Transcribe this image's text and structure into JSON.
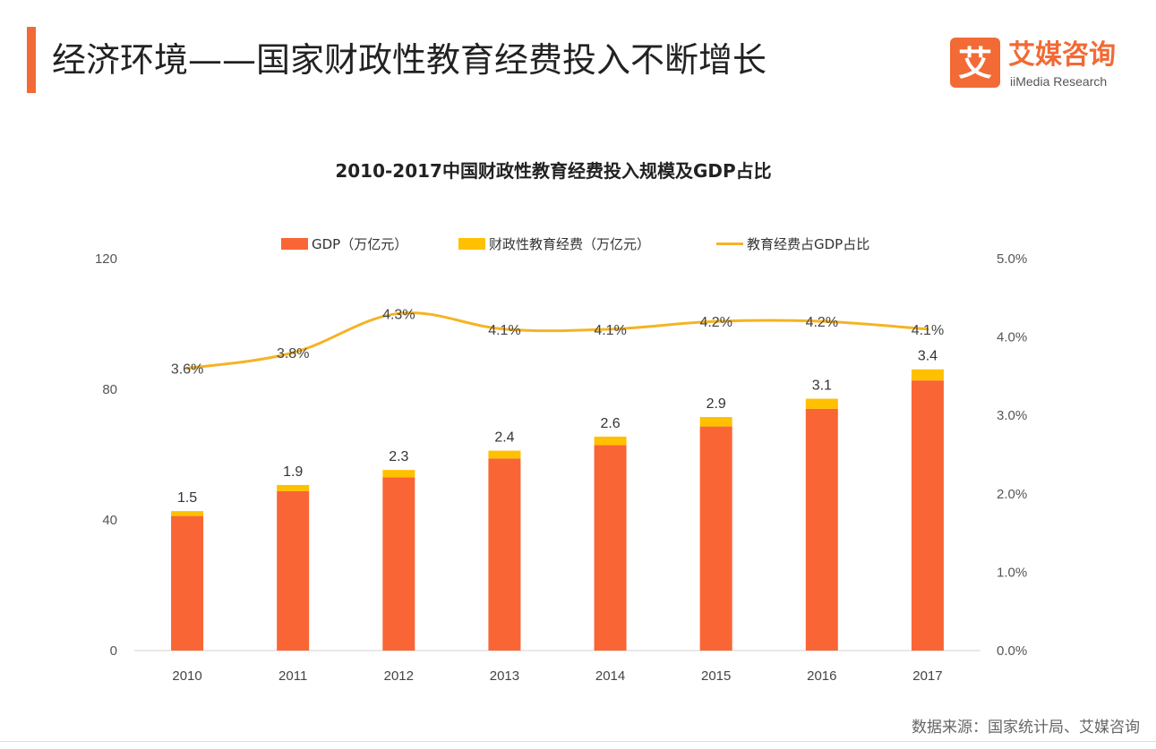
{
  "header": {
    "title": "经济环境——国家财政性教育经费投入不断增长",
    "accent_color": "#F26A35"
  },
  "brand": {
    "logo_char": "艾",
    "name": "艾媒咨询",
    "sub": "iiMedia Research",
    "color": "#F26A35"
  },
  "chart_data": {
    "type": "bar",
    "title": "2010-2017中国财政性教育经费投入规模及GDP占比",
    "categories": [
      "2010",
      "2011",
      "2012",
      "2013",
      "2014",
      "2015",
      "2016",
      "2017"
    ],
    "series": [
      {
        "name": "GDP（万亿元）",
        "kind": "stacked-bar",
        "axis": "left",
        "color": "#F96535",
        "values": [
          41.2,
          48.8,
          53.0,
          58.8,
          62.9,
          68.6,
          74.0,
          82.7
        ]
      },
      {
        "name": "财政性教育经费（万亿元）",
        "kind": "stacked-bar",
        "axis": "left",
        "color": "#FFC000",
        "values": [
          1.5,
          1.9,
          2.3,
          2.4,
          2.6,
          2.9,
          3.1,
          3.4
        ],
        "labels": [
          "1.5",
          "1.9",
          "2.3",
          "2.4",
          "2.6",
          "2.9",
          "3.1",
          "3.4"
        ]
      },
      {
        "name": "教育经费占GDP占比",
        "kind": "line",
        "axis": "right",
        "color": "#F5B324",
        "values": [
          3.6,
          3.8,
          4.3,
          4.1,
          4.1,
          4.2,
          4.2,
          4.1
        ],
        "labels": [
          "3.6%",
          "3.8%",
          "4.3%",
          "4.1%",
          "4.1%",
          "4.2%",
          "4.2%",
          "4.1%"
        ]
      }
    ],
    "y_left": {
      "min": 0,
      "max": 120,
      "ticks": [
        "0",
        "40",
        "80",
        "120"
      ],
      "tick_values": [
        0,
        40,
        80,
        120
      ]
    },
    "y_right": {
      "min": 0,
      "max": 5,
      "ticks": [
        "0.0%",
        "1.0%",
        "2.0%",
        "3.0%",
        "4.0%",
        "5.0%"
      ],
      "tick_values": [
        0,
        1,
        2,
        3,
        4,
        5
      ]
    },
    "legend_position": "top",
    "grid": false
  },
  "source": "数据来源：国家统计局、艾媒咨询"
}
